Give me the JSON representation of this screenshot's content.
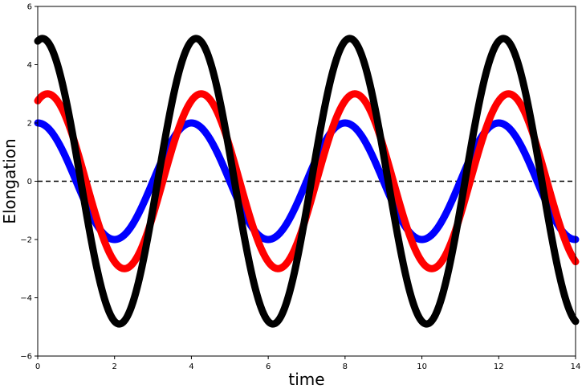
{
  "chart_data": {
    "type": "line",
    "title": "",
    "xlabel": "time",
    "ylabel": "Elongation",
    "xlim": [
      0,
      14
    ],
    "ylim": [
      -6,
      6
    ],
    "xticks": [
      0,
      2,
      4,
      6,
      8,
      10,
      12,
      14
    ],
    "yticks": [
      -6,
      -4,
      -2,
      0,
      2,
      4,
      6
    ],
    "grid": false,
    "legend": "none",
    "reference_line": {
      "y": 0,
      "style": "dashed",
      "color": "#000000"
    },
    "series": [
      {
        "amplitude": 2,
        "period": 4,
        "phase_at_zero_deg": 0,
        "color": "#0000ff"
      },
      {
        "amplitude": 3,
        "period": 4,
        "phase_at_zero_deg": 23,
        "color": "#ff0000"
      },
      {
        "amplitude": 4.9,
        "period": 4,
        "phase_at_zero_deg": 11,
        "color": "#000000"
      }
    ],
    "formula": "y = amplitude * cos(2π * x / period - phase)"
  }
}
